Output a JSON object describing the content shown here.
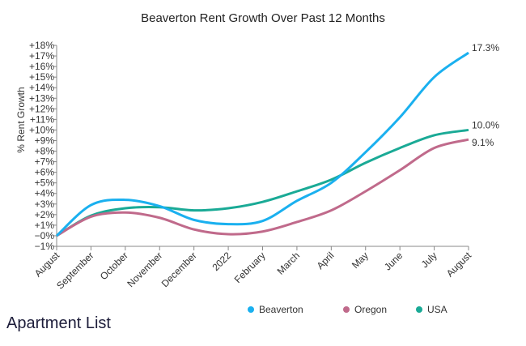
{
  "chart_data": {
    "type": "line",
    "title": "Beaverton Rent Growth Over Past 12 Months",
    "ylabel": "% Rent Growth",
    "xlabel": "",
    "categories": [
      "August",
      "September",
      "October",
      "November",
      "December",
      "2022",
      "February",
      "March",
      "April",
      "May",
      "June",
      "July",
      "August"
    ],
    "yticks": [
      "+18%",
      "+17%",
      "+16%",
      "+15%",
      "+14%",
      "+13%",
      "+12%",
      "+11%",
      "+10%",
      "+9%",
      "+8%",
      "+7%",
      "+6%",
      "+5%",
      "+4%",
      "+3%",
      "+2%",
      "+1%",
      "−0%",
      "−1%"
    ],
    "ylim": [
      -1,
      18
    ],
    "grid": false,
    "legend": "bottom",
    "series": [
      {
        "name": "Beaverton",
        "color": "#1ab0ef",
        "values": [
          0,
          2.9,
          3.4,
          2.8,
          1.5,
          1.1,
          1.4,
          3.3,
          5.0,
          7.9,
          11.2,
          15.0,
          17.3
        ],
        "end_label": "17.3%"
      },
      {
        "name": "Oregon",
        "color": "#c06a8b",
        "values": [
          0,
          1.8,
          2.2,
          1.7,
          0.6,
          0.15,
          0.4,
          1.3,
          2.4,
          4.2,
          6.2,
          8.3,
          9.1
        ],
        "end_label": "9.1%"
      },
      {
        "name": "USA",
        "color": "#1aaa96",
        "values": [
          0,
          1.9,
          2.6,
          2.7,
          2.4,
          2.6,
          3.2,
          4.2,
          5.3,
          6.9,
          8.3,
          9.5,
          10.0
        ],
        "end_label": "10.0%"
      }
    ]
  },
  "logo": {
    "text": "Apartment List"
  }
}
